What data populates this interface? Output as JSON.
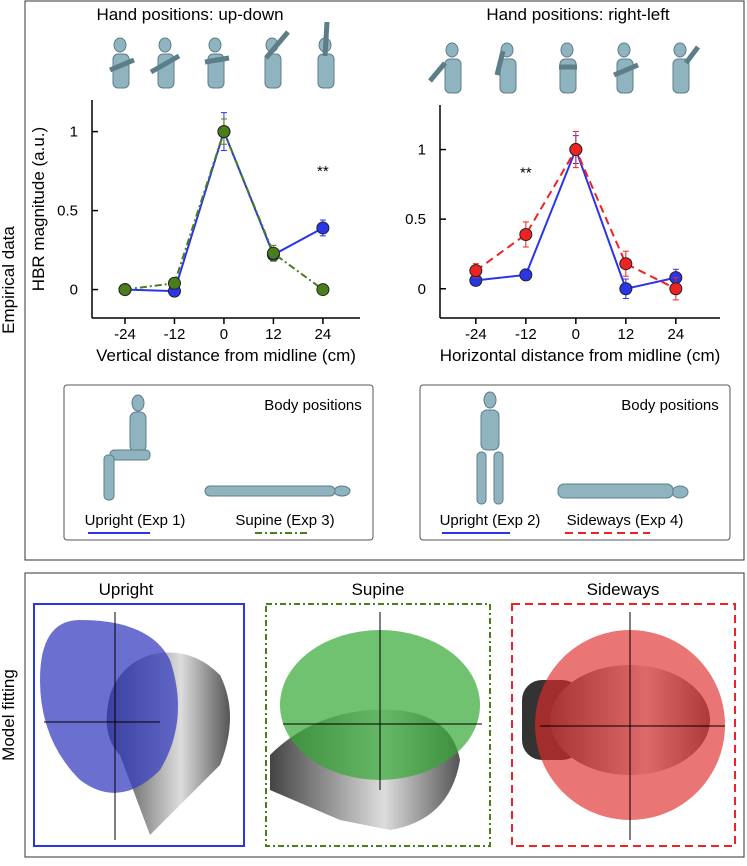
{
  "row_labels": {
    "top": "Empirical data",
    "bottom": "Model fitting"
  },
  "chart_data": [
    {
      "type": "line",
      "title": "Hand positions: up-down",
      "xlabel": "Vertical distance from midline (cm)",
      "ylabel": "HBR magnitude (a.u.)",
      "x": [
        -24,
        -12,
        0,
        12,
        24
      ],
      "xlim": [
        -32,
        33
      ],
      "ylim": [
        -0.18,
        1.2
      ],
      "xticks": [
        -24,
        -12,
        0,
        12,
        24
      ],
      "yticks": [
        0,
        0.5,
        1
      ],
      "annotation": "**",
      "legend_title": "Body positions",
      "series": [
        {
          "name": "Upright (Exp 1)",
          "color": "#2b35e8",
          "dash": "solid",
          "values": [
            0,
            -0.01,
            1,
            0.22,
            0.39
          ],
          "errors": [
            0.03,
            0.03,
            0.12,
            0.04,
            0.05
          ]
        },
        {
          "name": "Supine (Exp 3)",
          "color": "#4a7d1c",
          "dash": "dashdot",
          "values": [
            0,
            0.04,
            1,
            0.23,
            0
          ],
          "errors": [
            0.02,
            0.03,
            0.08,
            0.05,
            0.03
          ]
        }
      ]
    },
    {
      "type": "line",
      "title": "Hand positions: right-left",
      "xlabel": "Horizontal distance from midline (cm)",
      "x": [
        -24,
        -12,
        0,
        12,
        24
      ],
      "xlim": [
        -32.6,
        34.6
      ],
      "ylim": [
        -0.21,
        1.32
      ],
      "xticks": [
        -24,
        -12,
        0,
        12,
        24
      ],
      "yticks": [
        0,
        0.5,
        1
      ],
      "annotation": "**",
      "legend_title": "Body positions",
      "series": [
        {
          "name": "Upright (Exp 2)",
          "color": "#2b35e8",
          "dash": "solid",
          "values": [
            0.06,
            0.1,
            1,
            0,
            0.08
          ],
          "errors": [
            0.03,
            0.04,
            0.1,
            0.07,
            0.06
          ]
        },
        {
          "name": "Sideways (Exp 4)",
          "color": "#ee2222",
          "dash": "dashed",
          "values": [
            0.13,
            0.39,
            1,
            0.18,
            0
          ],
          "errors": [
            0.05,
            0.09,
            0.13,
            0.09,
            0.08
          ]
        }
      ]
    }
  ],
  "model_fitting": {
    "panels": [
      "Upright",
      "Supine",
      "Sideways"
    ]
  }
}
